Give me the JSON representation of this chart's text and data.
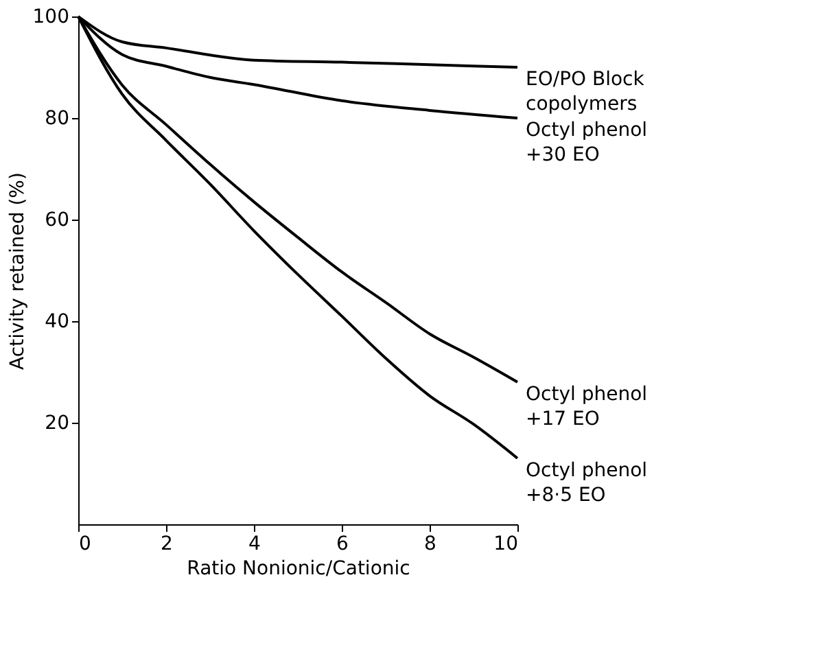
{
  "chart_data": {
    "type": "line",
    "xlabel": "Ratio Nonionic/Cationic",
    "ylabel": "Activity retained (%)",
    "x": [
      0,
      1,
      2,
      3,
      4,
      5,
      6,
      7,
      8,
      9,
      10
    ],
    "series": [
      {
        "name": "EO/PO Block copolymers",
        "color": "#000000",
        "x": [
          0,
          1,
          2,
          4,
          6,
          8,
          10
        ],
        "values": [
          100,
          95,
          93.8,
          91.4,
          91,
          90.5,
          90
        ]
      },
      {
        "name": "Octyl phenol +30 EO",
        "color": "#000000",
        "x": [
          0,
          1,
          2,
          3,
          4,
          6,
          8,
          10
        ],
        "values": [
          100,
          92.5,
          90.2,
          88,
          86.6,
          83.4,
          81.5,
          80
        ]
      },
      {
        "name": "Octyl phenol +17 EO",
        "color": "#000000",
        "values": [
          100,
          86.5,
          78.7,
          70.9,
          63.5,
          56.5,
          49.7,
          43.7,
          37.5,
          32.9,
          28
        ]
      },
      {
        "name": "Octyl phenol +8·5 EO",
        "color": "#000000",
        "values": [
          100,
          84.7,
          75.6,
          67,
          57.8,
          49.2,
          41,
          32.7,
          25.3,
          19.7,
          13
        ]
      }
    ],
    "xlim": [
      0,
      10
    ],
    "ylim": [
      0,
      100
    ],
    "xticks": [
      0,
      2,
      4,
      6,
      8,
      10
    ],
    "yticks": [
      20,
      40,
      60,
      80,
      100
    ],
    "grid": false,
    "legend": false,
    "marker": "none",
    "line_style": "solid"
  }
}
